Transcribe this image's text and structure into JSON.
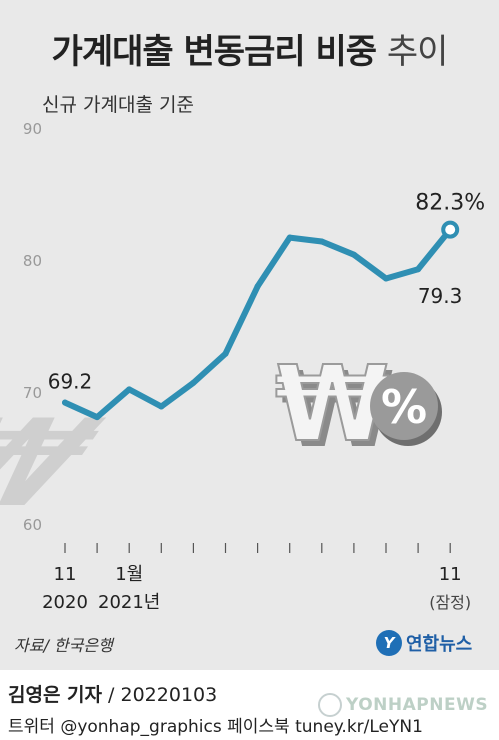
{
  "header": {
    "title_main": "가계대출 변동금리 비중",
    "title_light": "추이",
    "subtitle": "신규 가계대출 기준"
  },
  "chart_data": {
    "type": "line",
    "ylim": [
      60,
      90
    ],
    "yticks": [
      60,
      70,
      80,
      90
    ],
    "x": [
      "2020-11",
      "2020-12",
      "2021-01",
      "2021-02",
      "2021-03",
      "2021-04",
      "2021-05",
      "2021-06",
      "2021-07",
      "2021-08",
      "2021-09",
      "2021-10",
      "2021-11"
    ],
    "values": [
      69.2,
      68.1,
      70.2,
      68.9,
      70.7,
      72.9,
      78.0,
      81.7,
      81.4,
      80.4,
      78.6,
      79.3,
      82.3
    ],
    "x_tick_labels": [
      {
        "index": 0,
        "line1": "11",
        "line2": "2020"
      },
      {
        "index": 2,
        "line1": "1월",
        "line2": "2021년"
      },
      {
        "index": 12,
        "line1": "11",
        "line2": "(잠정)"
      }
    ],
    "annotations": [
      {
        "index": 0,
        "text": "69.2"
      },
      {
        "index": 11,
        "text": "79.3"
      },
      {
        "index": 12,
        "text": "82.3%"
      }
    ],
    "grid": false,
    "line_color": "#2f8fb3"
  },
  "illustration": {
    "percent_symbol": "%",
    "won_symbol": "₩"
  },
  "footer": {
    "source": "자료/ 한국은행",
    "brand": "연합뉴스",
    "reporter": "김영은 기자",
    "date": " / 20220103",
    "social": "트위터 @yonhap_graphics  페이스북 tuney.kr/LeYN1",
    "watermark": "YONHAPNEWS"
  }
}
